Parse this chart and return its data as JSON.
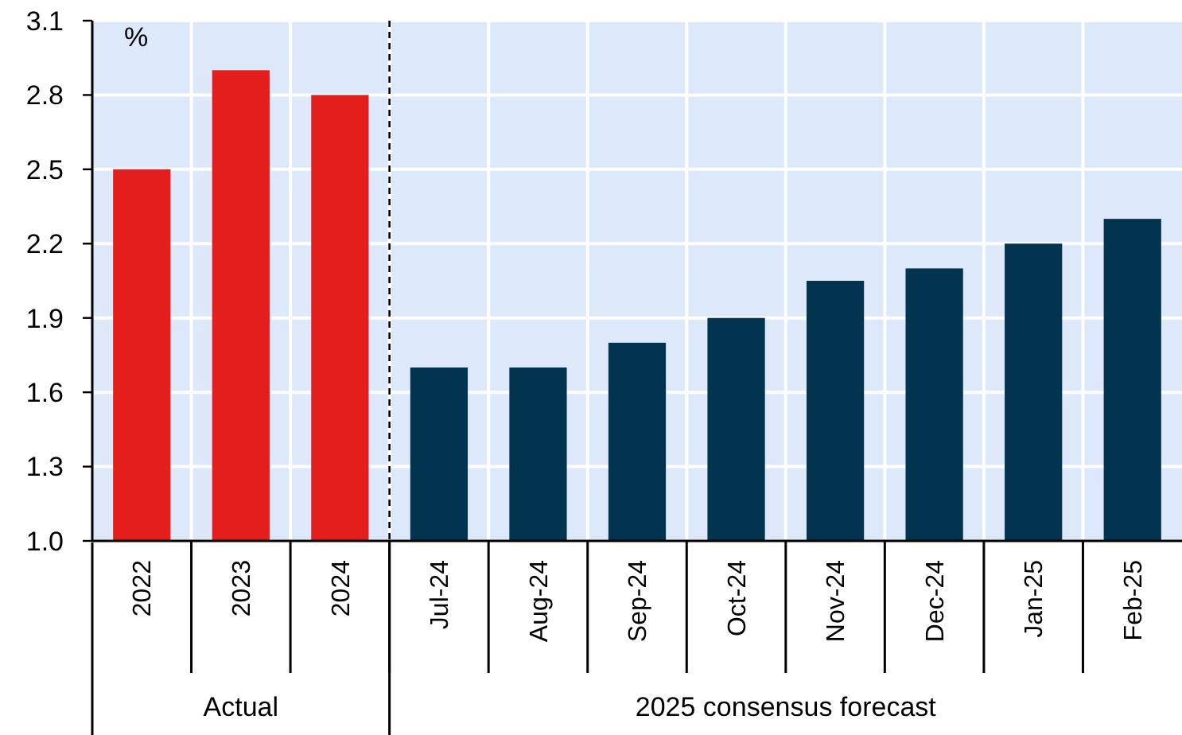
{
  "chart_data": {
    "type": "bar",
    "ylabel": "%",
    "categories": [
      "2022",
      "2023",
      "2024",
      "Jul-24",
      "Aug-24",
      "Sep-24",
      "Oct-24",
      "Nov-24",
      "Dec-24",
      "Jan-25",
      "Feb-25"
    ],
    "values": [
      2.5,
      2.9,
      2.8,
      1.7,
      1.7,
      1.8,
      1.9,
      2.05,
      2.1,
      2.2,
      2.3
    ],
    "colors": [
      "#e31e1c",
      "#e31e1c",
      "#e31e1c",
      "#02334f",
      "#02334f",
      "#02334f",
      "#02334f",
      "#02334f",
      "#02334f",
      "#02334f",
      "#02334f"
    ],
    "ylim": [
      1.0,
      3.1
    ],
    "yticks": [
      {
        "value": 1.0,
        "label": "1.0"
      },
      {
        "value": 1.3,
        "label": "1.3"
      },
      {
        "value": 1.6,
        "label": "1.6"
      },
      {
        "value": 1.9,
        "label": "1.9"
      },
      {
        "value": 2.2,
        "label": "2.2"
      },
      {
        "value": 2.5,
        "label": "2.5"
      },
      {
        "value": 2.8,
        "label": "2.8"
      },
      {
        "value": 3.1,
        "label": "3.1"
      }
    ],
    "grid": true,
    "ref_lines": [
      {
        "axis": "x",
        "value": "Jul-24",
        "line_style": "dashed",
        "color": "#000000"
      }
    ],
    "annotations": [
      "Actual",
      "2025 consensus forecast"
    ]
  }
}
